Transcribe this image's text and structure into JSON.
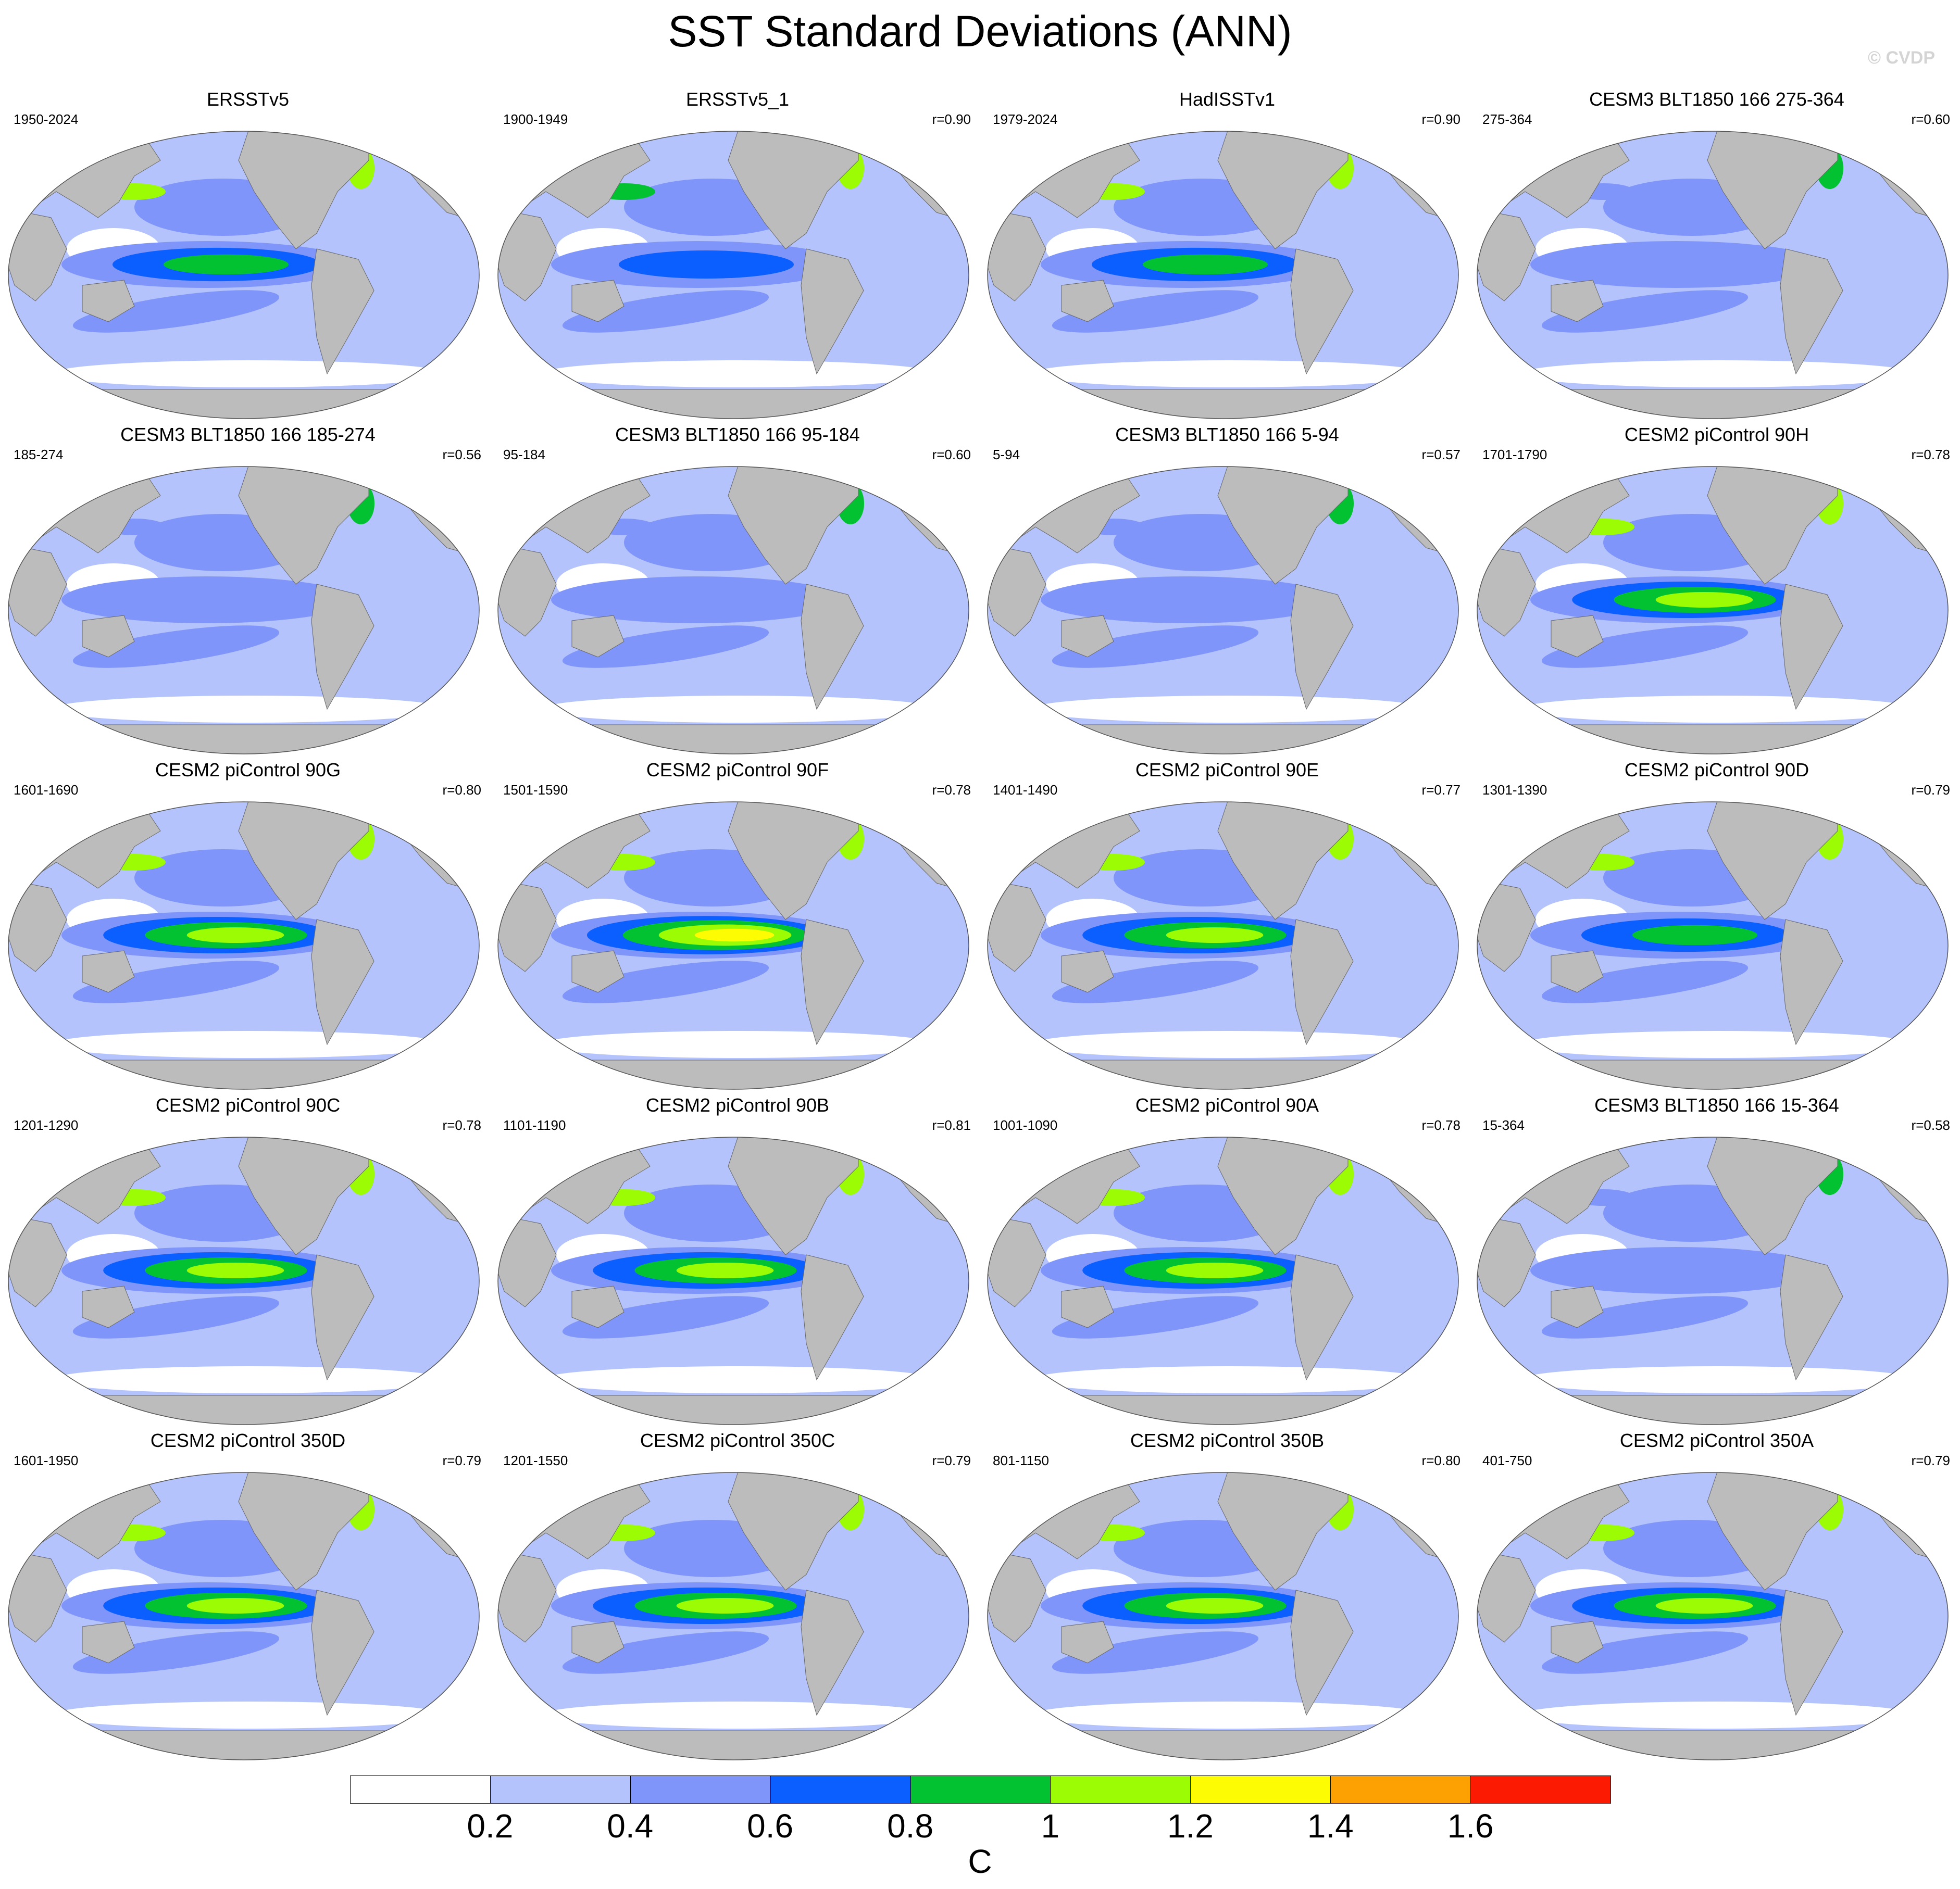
{
  "header": {
    "title": "SST Standard Deviations (ANN)",
    "watermark": "© CVDP"
  },
  "chart_data": {
    "type": "heatmap",
    "title": "SST Standard Deviations (ANN)",
    "projection": "Robinson global map, Pacific-centered",
    "colorbar": {
      "unit": "C",
      "ticks": [
        "0.2",
        "0.4",
        "0.6",
        "0.8",
        "1",
        "1.2",
        "1.4",
        "1.6"
      ],
      "colors": [
        "#ffffff",
        "#b4c3fb",
        "#7f95fa",
        "#0b5ffe",
        "#02c232",
        "#9bfc03",
        "#fdfc03",
        "#fda102",
        "#fd1a03"
      ]
    },
    "panels": [
      {
        "title": "ERSSTv5",
        "years": "1950-2024",
        "r": "",
        "nino_max": 1.0
      },
      {
        "title": "ERSSTv5_1",
        "years": "1900-1949",
        "r": "r=0.90",
        "nino_max": 0.8
      },
      {
        "title": "HadISSTv1",
        "years": "1979-2024",
        "r": "r=0.90",
        "nino_max": 1.0
      },
      {
        "title": "CESM3 BLT1850 166 275-364",
        "years": "275-364",
        "r": "r=0.60",
        "nino_max": 0.6
      },
      {
        "title": "CESM3 BLT1850 166 185-274",
        "years": "185-274",
        "r": "r=0.56",
        "nino_max": 0.6
      },
      {
        "title": "CESM3 BLT1850 166 95-184",
        "years": "95-184",
        "r": "r=0.60",
        "nino_max": 0.6
      },
      {
        "title": "CESM3 BLT1850 166 5-94",
        "years": "5-94",
        "r": "r=0.57",
        "nino_max": 0.6
      },
      {
        "title": "CESM2 piControl 90H",
        "years": "1701-1790",
        "r": "r=0.78",
        "nino_max": 1.2
      },
      {
        "title": "CESM2 piControl 90G",
        "years": "1601-1690",
        "r": "r=0.80",
        "nino_max": 1.2
      },
      {
        "title": "CESM2 piControl 90F",
        "years": "1501-1590",
        "r": "r=0.78",
        "nino_max": 1.4
      },
      {
        "title": "CESM2 piControl 90E",
        "years": "1401-1490",
        "r": "r=0.77",
        "nino_max": 1.2
      },
      {
        "title": "CESM2 piControl 90D",
        "years": "1301-1390",
        "r": "r=0.79",
        "nino_max": 1.0
      },
      {
        "title": "CESM2 piControl 90C",
        "years": "1201-1290",
        "r": "r=0.78",
        "nino_max": 1.2
      },
      {
        "title": "CESM2 piControl 90B",
        "years": "1101-1190",
        "r": "r=0.81",
        "nino_max": 1.2
      },
      {
        "title": "CESM2 piControl 90A",
        "years": "1001-1090",
        "r": "r=0.78",
        "nino_max": 1.2
      },
      {
        "title": "CESM3 BLT1850 166 15-364",
        "years": "15-364",
        "r": "r=0.58",
        "nino_max": 0.6
      },
      {
        "title": "CESM2 piControl 350D",
        "years": "1601-1950",
        "r": "r=0.79",
        "nino_max": 1.2
      },
      {
        "title": "CESM2 piControl 350C",
        "years": "1201-1550",
        "r": "r=0.79",
        "nino_max": 1.2
      },
      {
        "title": "CESM2 piControl 350B",
        "years": "801-1150",
        "r": "r=0.80",
        "nino_max": 1.2
      },
      {
        "title": "CESM2 piControl 350A",
        "years": "401-750",
        "r": "r=0.79",
        "nino_max": 1.2
      }
    ]
  }
}
